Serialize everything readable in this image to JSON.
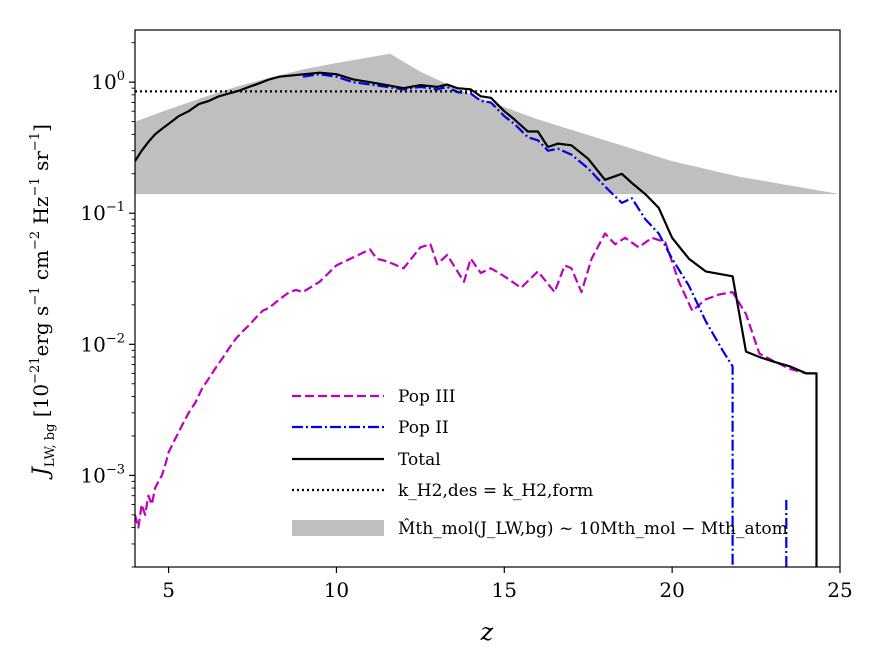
{
  "chart_data": {
    "type": "line",
    "xlabel": "z",
    "ylabel": "J_LW,bg [10^-21 erg s^-1 cm^-2 Hz^-1 sr^-1]",
    "ylabel_parts": {
      "sym": "J",
      "sub": "LW, bg",
      "open": " [10",
      "exp1": "−21",
      "u1": "erg s",
      "exp2": "−1",
      "u2": " cm",
      "exp3": "−2",
      "u3": " Hz",
      "exp4": "−1",
      "u4": " sr",
      "exp5": "−1",
      "close": "]"
    },
    "xlim": [
      4,
      25
    ],
    "ylim": [
      0.0002,
      2.5
    ],
    "yscale": "log",
    "xticks": [
      5,
      10,
      15,
      20,
      25
    ],
    "xtick_labels": [
      "5",
      "10",
      "15",
      "20",
      "25"
    ],
    "yticks": [
      {
        "value": 0.001,
        "base": "10",
        "exp": "−3"
      },
      {
        "value": 0.01,
        "base": "10",
        "exp": "−2"
      },
      {
        "value": 0.1,
        "base": "10",
        "exp": "−1"
      },
      {
        "value": 1,
        "base": "10",
        "exp": "0"
      }
    ],
    "series": [
      {
        "name": "Pop III",
        "label": "Pop III",
        "color": "#bf00bf",
        "style": "dashed",
        "x": [
          4.0,
          4.1,
          4.2,
          4.3,
          4.4,
          4.5,
          4.6,
          4.7,
          4.8,
          4.9,
          5.0,
          5.2,
          5.4,
          5.6,
          5.8,
          6.0,
          6.2,
          6.4,
          6.6,
          6.8,
          7.0,
          7.2,
          7.4,
          7.6,
          7.8,
          8.0,
          8.2,
          8.4,
          8.6,
          8.8,
          9.0,
          9.5,
          10.0,
          10.5,
          11.0,
          11.2,
          11.5,
          12.0,
          12.5,
          12.8,
          13.0,
          13.3,
          13.8,
          14.0,
          14.3,
          14.6,
          15.0,
          15.5,
          16.0,
          16.5,
          16.8,
          17.0,
          17.3,
          17.6,
          18.0,
          18.3,
          18.6,
          19.0,
          19.4,
          19.8,
          20.2,
          20.6,
          21.0,
          21.4,
          21.8,
          22.2,
          22.6,
          23.0,
          23.5,
          24.0,
          24.3
        ],
        "y": [
          0.0005,
          0.0004,
          0.0006,
          0.0005,
          0.0007,
          0.0006,
          0.0008,
          0.0009,
          0.001,
          0.0012,
          0.0015,
          0.0019,
          0.0024,
          0.003,
          0.0036,
          0.0046,
          0.0055,
          0.0066,
          0.0078,
          0.0093,
          0.011,
          0.0125,
          0.014,
          0.016,
          0.018,
          0.019,
          0.021,
          0.023,
          0.025,
          0.026,
          0.025,
          0.03,
          0.04,
          0.046,
          0.053,
          0.045,
          0.043,
          0.038,
          0.055,
          0.058,
          0.041,
          0.048,
          0.03,
          0.045,
          0.035,
          0.038,
          0.033,
          0.027,
          0.036,
          0.025,
          0.04,
          0.038,
          0.025,
          0.045,
          0.07,
          0.058,
          0.065,
          0.055,
          0.065,
          0.06,
          0.03,
          0.018,
          0.022,
          0.024,
          0.025,
          0.017,
          0.0085,
          0.0075,
          0.0065,
          0.006,
          0.006
        ]
      },
      {
        "name": "Pop II",
        "label": "Pop II",
        "color": "#0000e6",
        "style": "dashdot",
        "x": [
          9.0,
          9.5,
          10.0,
          10.5,
          11.0,
          11.5,
          12.0,
          12.5,
          13.0,
          13.3,
          13.6,
          14.0,
          14.3,
          14.6,
          15.0,
          15.3,
          15.7,
          16.0,
          16.3,
          16.6,
          17.0,
          17.5,
          18.0,
          18.5,
          18.8,
          19.2,
          19.6,
          20.0,
          20.5,
          21.0,
          21.5,
          21.8,
          21.8
        ],
        "y": [
          1.1,
          1.15,
          1.1,
          1.0,
          0.96,
          0.92,
          0.88,
          0.92,
          0.88,
          0.92,
          0.84,
          0.82,
          0.72,
          0.7,
          0.55,
          0.48,
          0.38,
          0.36,
          0.3,
          0.31,
          0.28,
          0.22,
          0.16,
          0.12,
          0.13,
          0.09,
          0.07,
          0.045,
          0.028,
          0.015,
          0.009,
          0.0068,
          0.0002
        ]
      },
      {
        "name": "Pop II (high-z spike)",
        "label": "",
        "color": "#0000e6",
        "style": "dashdot",
        "x": [
          23.4,
          23.4
        ],
        "y": [
          0.0002,
          0.00065
        ]
      },
      {
        "name": "Total",
        "label": "Total",
        "color": "#000000",
        "style": "solid",
        "x": [
          4.0,
          4.2,
          4.4,
          4.6,
          4.8,
          5.0,
          5.3,
          5.6,
          5.9,
          6.2,
          6.5,
          6.8,
          7.1,
          7.4,
          7.7,
          8.0,
          8.3,
          8.6,
          8.9,
          9.2,
          9.5,
          10.0,
          10.5,
          11.0,
          11.5,
          12.0,
          12.5,
          13.0,
          13.3,
          13.6,
          14.0,
          14.3,
          14.6,
          15.0,
          15.3,
          15.7,
          16.0,
          16.3,
          16.6,
          17.0,
          17.5,
          18.0,
          18.5,
          18.8,
          19.2,
          19.6,
          20.0,
          20.5,
          21.0,
          21.8,
          22.2,
          22.6,
          23.0,
          23.5,
          24.0,
          24.3,
          24.3
        ],
        "y": [
          0.25,
          0.3,
          0.35,
          0.4,
          0.44,
          0.48,
          0.55,
          0.6,
          0.68,
          0.72,
          0.78,
          0.82,
          0.86,
          0.92,
          0.98,
          1.05,
          1.1,
          1.12,
          1.14,
          1.16,
          1.18,
          1.15,
          1.05,
          1.0,
          0.95,
          0.9,
          0.95,
          0.92,
          0.96,
          0.9,
          0.88,
          0.78,
          0.76,
          0.6,
          0.52,
          0.42,
          0.42,
          0.32,
          0.34,
          0.33,
          0.26,
          0.18,
          0.2,
          0.17,
          0.14,
          0.11,
          0.065,
          0.045,
          0.036,
          0.033,
          0.0088,
          0.008,
          0.0074,
          0.0068,
          0.006,
          0.006,
          0.0002
        ]
      },
      {
        "name": "k_H2,des = k_H2,form",
        "label": "k_H2,des = k_H2,form",
        "color": "#000000",
        "style": "dotted",
        "x": [
          4,
          25
        ],
        "y": [
          0.85,
          0.85
        ]
      }
    ],
    "band": {
      "name": "Mth_mol(J_LW,bg) ~ 10 Mth_mol - Mth_atom",
      "label": "M̂th_mol(J_LW,bg) ~ 10Mth_mol − Mth_atom",
      "color": "#bfbfbf",
      "x": [
        4.0,
        5.0,
        6.0,
        7.0,
        8.0,
        9.0,
        10.0,
        11.0,
        11.6,
        12.5,
        14.0,
        16.0,
        18.0,
        20.0,
        22.0,
        25.0
      ],
      "y_low": [
        0.14,
        0.14,
        0.14,
        0.14,
        0.14,
        0.14,
        0.14,
        0.14,
        0.14,
        0.14,
        0.14,
        0.14,
        0.14,
        0.14,
        0.14,
        0.14
      ],
      "y_high": [
        0.5,
        0.62,
        0.76,
        0.92,
        1.08,
        1.25,
        1.4,
        1.55,
        1.65,
        1.2,
        0.8,
        0.52,
        0.36,
        0.25,
        0.19,
        0.14
      ]
    },
    "legend": {
      "placement": "lower-center",
      "entries": [
        {
          "key": "Pop III",
          "text": "Pop III",
          "style": "dashed",
          "color": "#bf00bf"
        },
        {
          "key": "Pop II",
          "text": "Pop II",
          "style": "dashdot",
          "color": "#0000e6"
        },
        {
          "key": "Total",
          "text": "Total",
          "style": "solid",
          "color": "#000000"
        },
        {
          "key": "threshold",
          "text": "k_H2,des = k_H2,form",
          "style": "dotted",
          "color": "#000000"
        },
        {
          "key": "band",
          "text": "M̂th_mol(J_LW,bg) ~ 10Mth_mol − Mth_atom",
          "style": "patch",
          "color": "#bfbfbf"
        }
      ]
    }
  }
}
